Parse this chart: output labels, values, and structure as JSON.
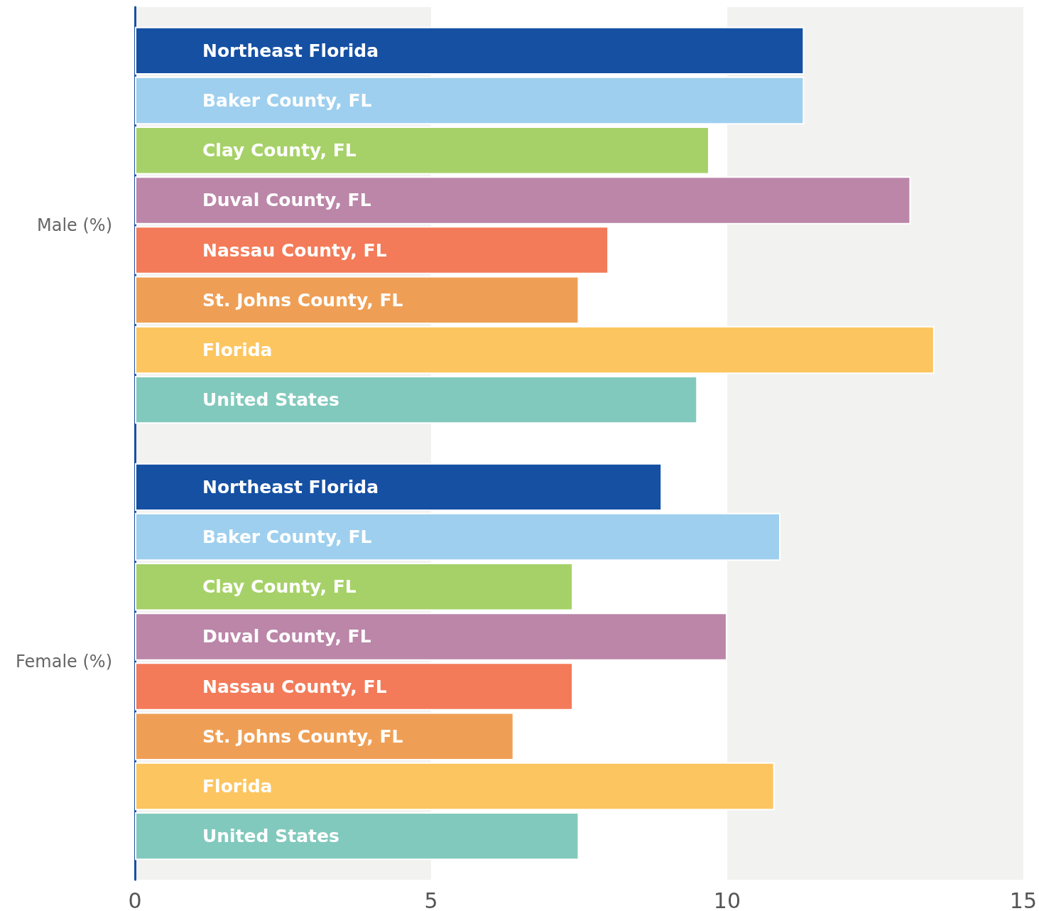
{
  "chart_data": {
    "type": "bar",
    "orientation": "horizontal",
    "categories": [
      "Male (%)",
      "Female (%)"
    ],
    "series": [
      {
        "name": "Northeast Florida",
        "color": "#1550a3",
        "values": [
          11.3,
          8.9
        ]
      },
      {
        "name": "Baker County, FL",
        "color": "#9ecfee",
        "values": [
          11.3,
          10.9
        ]
      },
      {
        "name": "Clay County, FL",
        "color": "#a6d168",
        "values": [
          9.7,
          7.4
        ]
      },
      {
        "name": "Duval County, FL",
        "color": "#bb86a8",
        "values": [
          13.1,
          10.0
        ]
      },
      {
        "name": "Nassau County, FL",
        "color": "#f37b59",
        "values": [
          8.0,
          7.4
        ]
      },
      {
        "name": "St. Johns County, FL",
        "color": "#ef9f55",
        "values": [
          7.5,
          6.4
        ]
      },
      {
        "name": "Florida",
        "color": "#fdc55f",
        "values": [
          13.5,
          10.8
        ]
      },
      {
        "name": "United States",
        "color": "#82c9bd",
        "values": [
          9.5,
          7.5
        ]
      }
    ],
    "xlim": [
      0,
      15
    ],
    "xticks": [
      0,
      5,
      10,
      15
    ],
    "legend": false,
    "bands": [
      {
        "axis": "x",
        "from": 0,
        "to": 5,
        "color": "#f2f2f0"
      },
      {
        "axis": "x",
        "from": 10,
        "to": 15,
        "color": "#f2f2f0"
      }
    ]
  }
}
